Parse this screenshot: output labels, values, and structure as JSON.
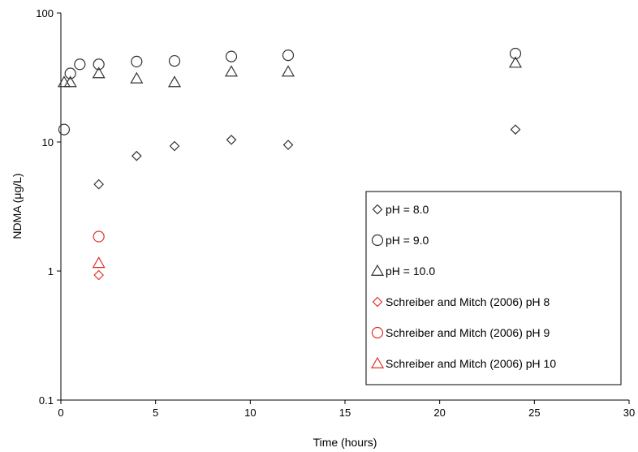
{
  "chart_data": {
    "type": "scatter",
    "xlabel": "Time (hours)",
    "ylabel": "NDMA (μg/L)",
    "xlim": [
      0,
      30
    ],
    "ylim": [
      0.1,
      100
    ],
    "yscale": "log",
    "x_ticks": [
      "0",
      "5",
      "10",
      "15",
      "20",
      "25",
      "30"
    ],
    "y_ticks": [
      "0.1",
      "1",
      "10",
      "100"
    ],
    "x_tick_values": [
      0,
      5,
      10,
      15,
      20,
      25,
      30
    ],
    "y_tick_values": [
      0.1,
      1,
      10,
      100
    ],
    "grid": false,
    "legend_position": "bottom-right",
    "series": [
      {
        "name": "pH = 8.0",
        "marker": "diamond",
        "color": "#333333",
        "x": [
          2,
          4,
          6,
          9,
          12,
          24
        ],
        "y": [
          4.7,
          7.8,
          9.3,
          10.4,
          9.5,
          12.5
        ]
      },
      {
        "name": "pH = 9.0",
        "marker": "circle",
        "color": "#333333",
        "x": [
          0.17,
          0.5,
          1,
          2,
          4,
          6,
          9,
          12,
          24
        ],
        "y": [
          12.5,
          34,
          40,
          40,
          42,
          42.5,
          46,
          47,
          48.5
        ]
      },
      {
        "name": "pH = 10.0",
        "marker": "triangle",
        "color": "#333333",
        "x": [
          0.17,
          0.5,
          2,
          4,
          6,
          9,
          12,
          24
        ],
        "y": [
          29,
          29,
          34,
          31,
          29,
          35,
          35,
          41
        ]
      },
      {
        "name": "Schreiber and Mitch (2006) pH 8",
        "marker": "diamond",
        "color": "#e0302b",
        "x": [
          2
        ],
        "y": [
          0.93
        ]
      },
      {
        "name": "Schreiber and Mitch (2006) pH 9",
        "marker": "circle",
        "color": "#e0302b",
        "x": [
          2
        ],
        "y": [
          1.85
        ]
      },
      {
        "name": "Schreiber and Mitch (2006) pH 10",
        "marker": "triangle",
        "color": "#e0302b",
        "x": [
          2
        ],
        "y": [
          1.15
        ]
      }
    ]
  }
}
